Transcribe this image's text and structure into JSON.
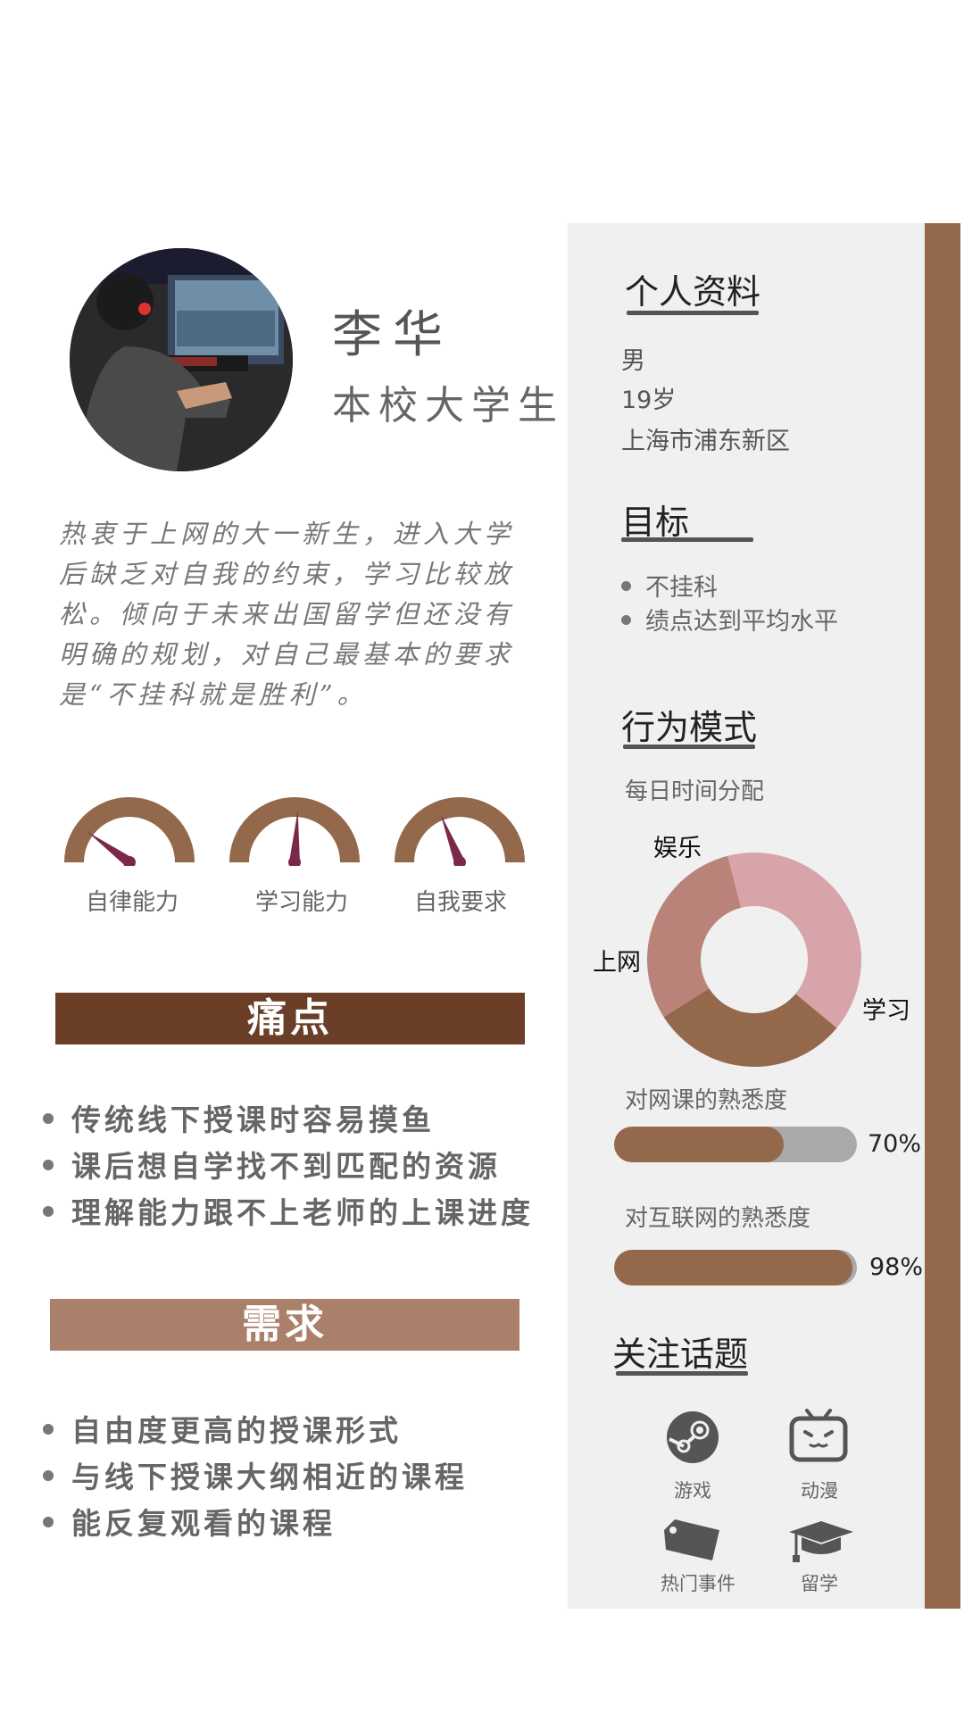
{
  "profile": {
    "name": "李华",
    "role": "本校大学生",
    "bio": "热衷于上网的大一新生，进入大学后缺乏对自我的约束，学习比较放松。倾向于未来出国留学但还没有明确的规划，对自己最基本的要求是“不挂科就是胜利”。"
  },
  "gauges": [
    {
      "label": "自律能力",
      "level": 0.2
    },
    {
      "label": "学习能力",
      "level": 0.52
    },
    {
      "label": "自我要求",
      "level": 0.38
    }
  ],
  "pain_points": {
    "title": "痛点",
    "items": [
      "传统线下授课时容易摸鱼",
      "课后想自学找不到匹配的资源",
      "理解能力跟不上老师的上课进度"
    ]
  },
  "needs": {
    "title": "需求",
    "items": [
      "自由度更高的授课形式",
      "与线下授课大纲相近的课程",
      "能反复观看的课程"
    ]
  },
  "personal_info": {
    "title": "个人资料",
    "gender": "男",
    "age": "19岁",
    "location": "上海市浦东新区"
  },
  "goals": {
    "title": "目标",
    "items": [
      "不挂科",
      "绩点达到平均水平"
    ]
  },
  "behavior": {
    "title": "行为模式",
    "time_title": "每日时间分配",
    "online_course_label": "对网课的熟悉度",
    "online_course_pct": "70%",
    "online_course_value": 70,
    "internet_label": "对互联网的熟悉度",
    "internet_pct": "98%",
    "internet_value": 98
  },
  "chart_data": {
    "type": "pie",
    "title": "每日时间分配",
    "categories": [
      "娱乐",
      "学习",
      "上网"
    ],
    "values": [
      40,
      30,
      30
    ],
    "colors": [
      "#d7a4a9",
      "#93684b",
      "#b98379"
    ]
  },
  "topics": {
    "title": "关注话题",
    "items": [
      {
        "label": "游戏",
        "icon": "steam-icon"
      },
      {
        "label": "动漫",
        "icon": "bilibili-tv-icon"
      },
      {
        "label": "热门事件",
        "icon": "tag-icon"
      },
      {
        "label": "留学",
        "icon": "graduation-cap-icon"
      }
    ]
  },
  "colors": {
    "brown": "#93684b",
    "dark_brown": "#6b3f27",
    "light_brown": "#ab806a",
    "panel_gray": "#f0f0f0",
    "needle": "#7a2a48"
  }
}
